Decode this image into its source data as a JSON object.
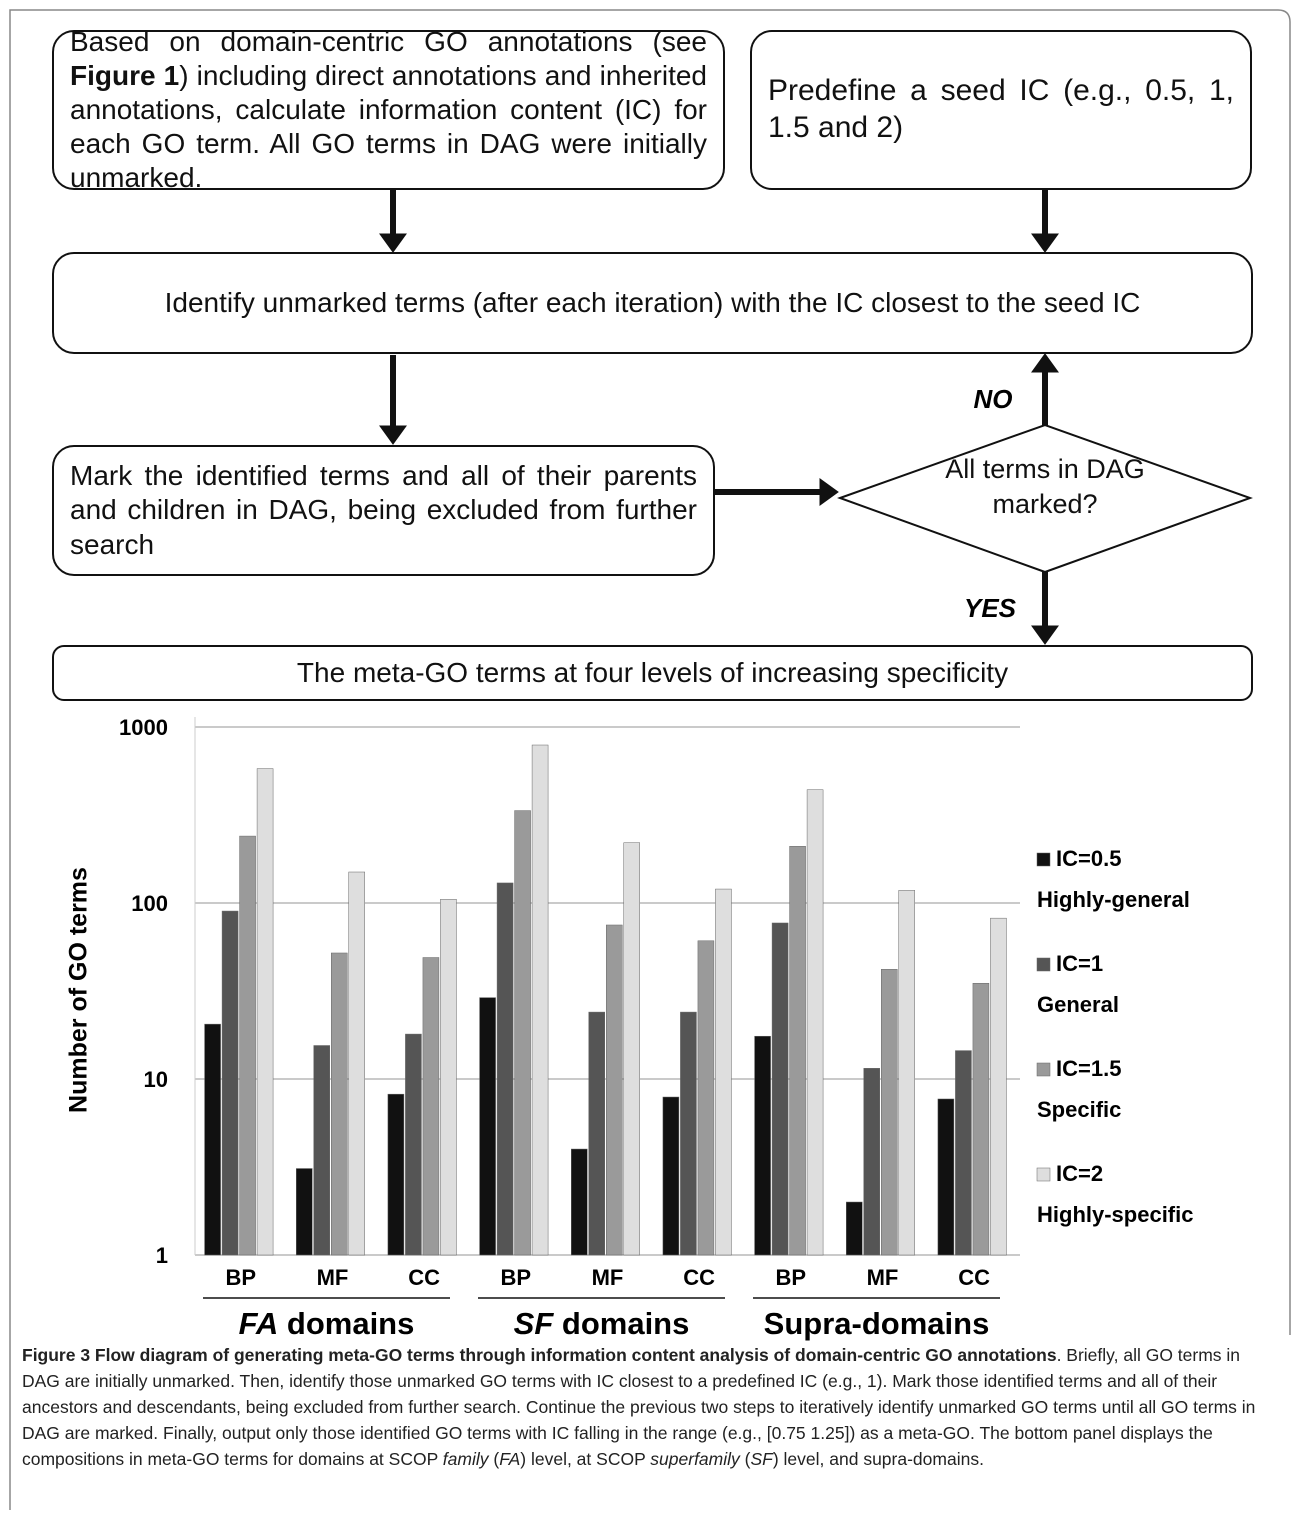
{
  "flowchart": {
    "nodes": [
      {
        "runs": [
          {
            "text": "Based on domain-centric GO annotations (see "
          },
          {
            "text": "Figure 1",
            "style": "bold"
          },
          {
            "text": ") including direct annotations and inherited annotations, calculate information content (IC) for each GO term. All GO terms in DAG were initially unmarked."
          }
        ]
      },
      {
        "runs": [
          {
            "text": "Predefine a seed IC (e.g., 0.5, 1, 1.5 and 2)"
          }
        ]
      },
      {
        "runs": [
          {
            "text": "Identify unmarked terms (after each iteration) with the IC closest to the seed IC"
          }
        ]
      },
      {
        "runs": [
          {
            "text": "Mark the identified terms and all of their parents and children in DAG, being excluded from further search"
          }
        ]
      },
      {
        "runs": [
          {
            "text": "All terms in DAG marked?"
          }
        ]
      },
      {
        "runs": [
          {
            "text": "The meta-GO terms at four levels of increasing specificity"
          }
        ]
      }
    ],
    "edge_labels": [
      "NO",
      "YES"
    ]
  },
  "chart_data": {
    "type": "bar",
    "y_label": "Number of GO terms",
    "categories": [
      "BP",
      "MF",
      "CC",
      "BP",
      "MF",
      "CC",
      "BP",
      "MF",
      "CC"
    ],
    "groups": [
      {
        "italic": "FA",
        "text": "domains"
      },
      {
        "italic": "SF",
        "text": "domains"
      },
      {
        "text": "Supra-domains"
      }
    ],
    "series": [
      {
        "name": "IC=0.5",
        "description": "Highly-general",
        "color": "#111111",
        "values": [
          20.5,
          3.1,
          8.2,
          29,
          4,
          7.9,
          17.5,
          2,
          7.7
        ]
      },
      {
        "name": "IC=1",
        "description": "General",
        "color": "#555555",
        "values": [
          90,
          15.5,
          18,
          130,
          24,
          24,
          77,
          11.5,
          14.5
        ]
      },
      {
        "name": "IC=1.5",
        "description": "Specific",
        "color": "#9a9a9a",
        "values": [
          240,
          52,
          49,
          335,
          75,
          61,
          210,
          42,
          35
        ]
      },
      {
        "name": "IC=2",
        "description": "Highly-specific",
        "color": "#dedede",
        "values": [
          580,
          150,
          105,
          790,
          220,
          120,
          440,
          118,
          82
        ]
      }
    ],
    "ylim": [
      1,
      1000
    ],
    "yticks": [
      1,
      10,
      100,
      1000
    ],
    "log_scale": true,
    "grid": true,
    "legend": "right"
  },
  "caption": {
    "runs": [
      {
        "text": "Figure 3 Flow diagram of generating meta-GO terms through information content analysis of domain-centric GO annotations",
        "style": "bold"
      },
      {
        "text": ". Briefly, all GO terms in DAG are initially unmarked. Then, identify those unmarked GO terms with IC closest to a predefined IC (e.g., 1). Mark those identified terms and all of their ancestors and descendants, being excluded from further search. Continue the previous two steps to iteratively identify unmarked GO terms until all GO terms in DAG are marked. Finally, output only those identified GO terms with IC falling in the range (e.g., [0.75 1.25]) as a meta-GO. The bottom panel displays the compositions in meta-GO terms for domains at SCOP "
      },
      {
        "text": "family",
        "style": "italic"
      },
      {
        "text": " ("
      },
      {
        "text": "FA",
        "style": "italic"
      },
      {
        "text": ") level, at SCOP "
      },
      {
        "text": "superfamily",
        "style": "italic"
      },
      {
        "text": " ("
      },
      {
        "text": "SF",
        "style": "italic"
      },
      {
        "text": ") level, and supra-domains."
      }
    ]
  }
}
